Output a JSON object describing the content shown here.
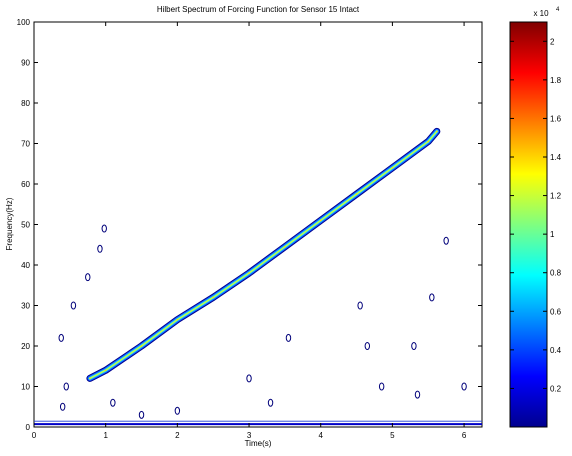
{
  "chart_data": {
    "type": "heatmap",
    "title": "Hilbert Spectrum of Forcing Function for Sensor 15 Intact",
    "xlabel": "Time(s)",
    "ylabel": "Frequency(Hz)",
    "xlim": [
      0,
      6.25
    ],
    "ylim": [
      0,
      100
    ],
    "xticks": [
      0,
      1,
      2,
      3,
      4,
      5,
      6
    ],
    "yticks": [
      0,
      10,
      20,
      30,
      40,
      50,
      60,
      70,
      80,
      90,
      100
    ],
    "grid": false,
    "colormap": "jet",
    "colorbar": {
      "range": [
        0,
        2.1
      ],
      "ticks": [
        0.2,
        0.4,
        0.6,
        0.8,
        1,
        1.2,
        1.4,
        1.6,
        1.8,
        2
      ],
      "tick_labels": [
        "0.2",
        "0.4",
        "0.6",
        "0.8",
        "1",
        "1.2",
        "1.4",
        "1.6",
        "1.8",
        "2"
      ],
      "exponent": "x 10"
    },
    "ridge": {
      "description_visible": false,
      "time": [
        0.78,
        1.0,
        1.5,
        2.0,
        2.5,
        3.0,
        3.5,
        4.0,
        4.5,
        5.0,
        5.5,
        5.62
      ],
      "frequency": [
        12,
        14,
        20,
        26.5,
        32,
        38,
        44.5,
        51,
        57.5,
        64,
        70.5,
        73
      ]
    },
    "low_frequency_band": {
      "time": [
        0,
        6.25
      ],
      "frequency": 0.7
    },
    "scattered_contours": [
      {
        "t": 0.38,
        "f": 22
      },
      {
        "t": 0.55,
        "f": 30
      },
      {
        "t": 0.75,
        "f": 37
      },
      {
        "t": 0.92,
        "f": 44
      },
      {
        "t": 0.98,
        "f": 49
      },
      {
        "t": 0.45,
        "f": 10
      },
      {
        "t": 0.4,
        "f": 5
      },
      {
        "t": 1.1,
        "f": 6
      },
      {
        "t": 1.5,
        "f": 3
      },
      {
        "t": 2.0,
        "f": 4
      },
      {
        "t": 3.0,
        "f": 12
      },
      {
        "t": 3.3,
        "f": 6
      },
      {
        "t": 3.55,
        "f": 22
      },
      {
        "t": 4.55,
        "f": 30
      },
      {
        "t": 4.65,
        "f": 20
      },
      {
        "t": 4.85,
        "f": 10
      },
      {
        "t": 5.3,
        "f": 20
      },
      {
        "t": 5.35,
        "f": 8
      },
      {
        "t": 5.55,
        "f": 32
      },
      {
        "t": 5.75,
        "f": 46
      },
      {
        "t": 6.0,
        "f": 10
      }
    ],
    "colors": {
      "jet": [
        "#00008f",
        "#0000ff",
        "#00ffff",
        "#ffff00",
        "#ff0000",
        "#800000"
      ]
    }
  }
}
